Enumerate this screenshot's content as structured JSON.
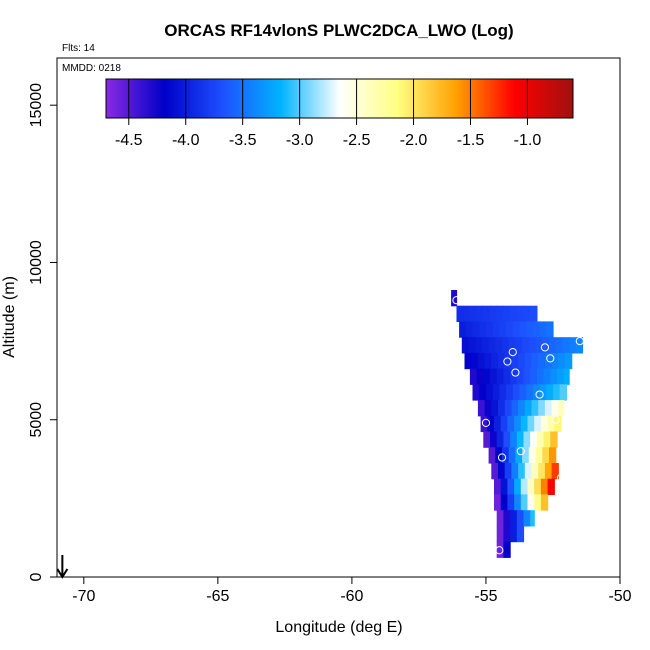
{
  "chart_data": {
    "type": "heatmap",
    "title": "ORCAS RF14vlonS PLWC2DCA_LWO (Log)",
    "xlabel": "Longitude (deg E)",
    "ylabel": "Altitude (m)",
    "xlim": [
      -71,
      -50
    ],
    "ylim": [
      0,
      16500
    ],
    "x_ticks": [
      -70,
      -65,
      -60,
      -55,
      -50
    ],
    "y_ticks": [
      0,
      5000,
      10000,
      15000
    ],
    "annotations": {
      "flights": "Flts: 14",
      "date": "MMDD: 0218"
    },
    "colorbar": {
      "range": [
        -4.7,
        -0.6
      ],
      "ticks": [
        -4.5,
        -4.0,
        -3.5,
        -3.0,
        -2.5,
        -2.0,
        -1.5,
        -1.0
      ],
      "tick_labels": [
        "-4.5",
        "-4.0",
        "-3.5",
        "-3.0",
        "-2.5",
        "-2.0",
        "-1.5",
        "-1.0"
      ],
      "colors": [
        "#8a2be2",
        "#0000c8",
        "#1e50ff",
        "#00b4ff",
        "#ffffff",
        "#ffff80",
        "#ffa000",
        "#ff0000",
        "#a01010"
      ]
    },
    "grid": false,
    "cell_size": {
      "lon": 0.25,
      "alt": 250
    },
    "field_rows": [
      {
        "alt": 8875,
        "lon_min": -56.3,
        "lon_max": -56.1,
        "v_left": -4.3,
        "v_right": -4.3
      },
      {
        "alt": 8375,
        "lon_min": -56.1,
        "lon_max": -53.0,
        "v_left": -3.9,
        "v_right": -3.7
      },
      {
        "alt": 7875,
        "lon_min": -56.0,
        "lon_max": -52.5,
        "v_left": -4.0,
        "v_right": -3.5
      },
      {
        "alt": 7375,
        "lon_min": -55.9,
        "lon_max": -51.4,
        "v_left": -4.1,
        "v_right": -3.4
      },
      {
        "alt": 6875,
        "lon_min": -55.8,
        "lon_max": -51.7,
        "v_left": -4.2,
        "v_right": -3.3
      },
      {
        "alt": 6375,
        "lon_min": -55.6,
        "lon_max": -51.9,
        "v_left": -4.3,
        "v_right": -3.2
      },
      {
        "alt": 5875,
        "lon_min": -55.5,
        "lon_max": -52.0,
        "v_left": -4.3,
        "v_right": -3.0
      },
      {
        "alt": 5375,
        "lon_min": -55.3,
        "lon_max": -52.1,
        "v_left": -4.4,
        "v_right": -2.4
      },
      {
        "alt": 4875,
        "lon_min": -55.2,
        "lon_max": -52.2,
        "v_left": -4.4,
        "v_right": -2.1
      },
      {
        "alt": 4375,
        "lon_min": -55.1,
        "lon_max": -52.3,
        "v_left": -4.5,
        "v_right": -1.8
      },
      {
        "alt": 3875,
        "lon_min": -54.9,
        "lon_max": -52.3,
        "v_left": -4.5,
        "v_right": -1.6
      },
      {
        "alt": 3375,
        "lon_min": -54.8,
        "lon_max": -52.3,
        "v_left": -4.5,
        "v_right": -1.3
      },
      {
        "alt": 2875,
        "lon_min": -54.7,
        "lon_max": -52.4,
        "v_left": -4.5,
        "v_right": -1.1
      },
      {
        "alt": 2375,
        "lon_min": -54.7,
        "lon_max": -52.7,
        "v_left": -4.6,
        "v_right": -1.8
      },
      {
        "alt": 1875,
        "lon_min": -54.6,
        "lon_max": -53.2,
        "v_left": -4.6,
        "v_right": -3.1
      },
      {
        "alt": 1375,
        "lon_min": -54.6,
        "lon_max": -53.6,
        "v_left": -4.6,
        "v_right": -3.7
      },
      {
        "alt": 875,
        "lon_min": -54.6,
        "lon_max": -54.0,
        "v_left": -4.6,
        "v_right": -4.2
      }
    ],
    "markers": [
      {
        "lon": -56.1,
        "alt": 8800
      },
      {
        "lon": -54.0,
        "alt": 7150
      },
      {
        "lon": -54.2,
        "alt": 6850
      },
      {
        "lon": -53.9,
        "alt": 6500
      },
      {
        "lon": -52.8,
        "alt": 7300
      },
      {
        "lon": -52.6,
        "alt": 6950
      },
      {
        "lon": -51.5,
        "alt": 7500
      },
      {
        "lon": -53.0,
        "alt": 5800
      },
      {
        "lon": -52.4,
        "alt": 5000
      },
      {
        "lon": -55.0,
        "alt": 4900
      },
      {
        "lon": -53.7,
        "alt": 4000
      },
      {
        "lon": -54.4,
        "alt": 3800
      },
      {
        "lon": -52.2,
        "alt": 3150
      },
      {
        "lon": -54.5,
        "alt": 850
      }
    ],
    "arrow": {
      "lon": -70.8,
      "alt_top": 700,
      "alt_bottom": 0
    }
  }
}
